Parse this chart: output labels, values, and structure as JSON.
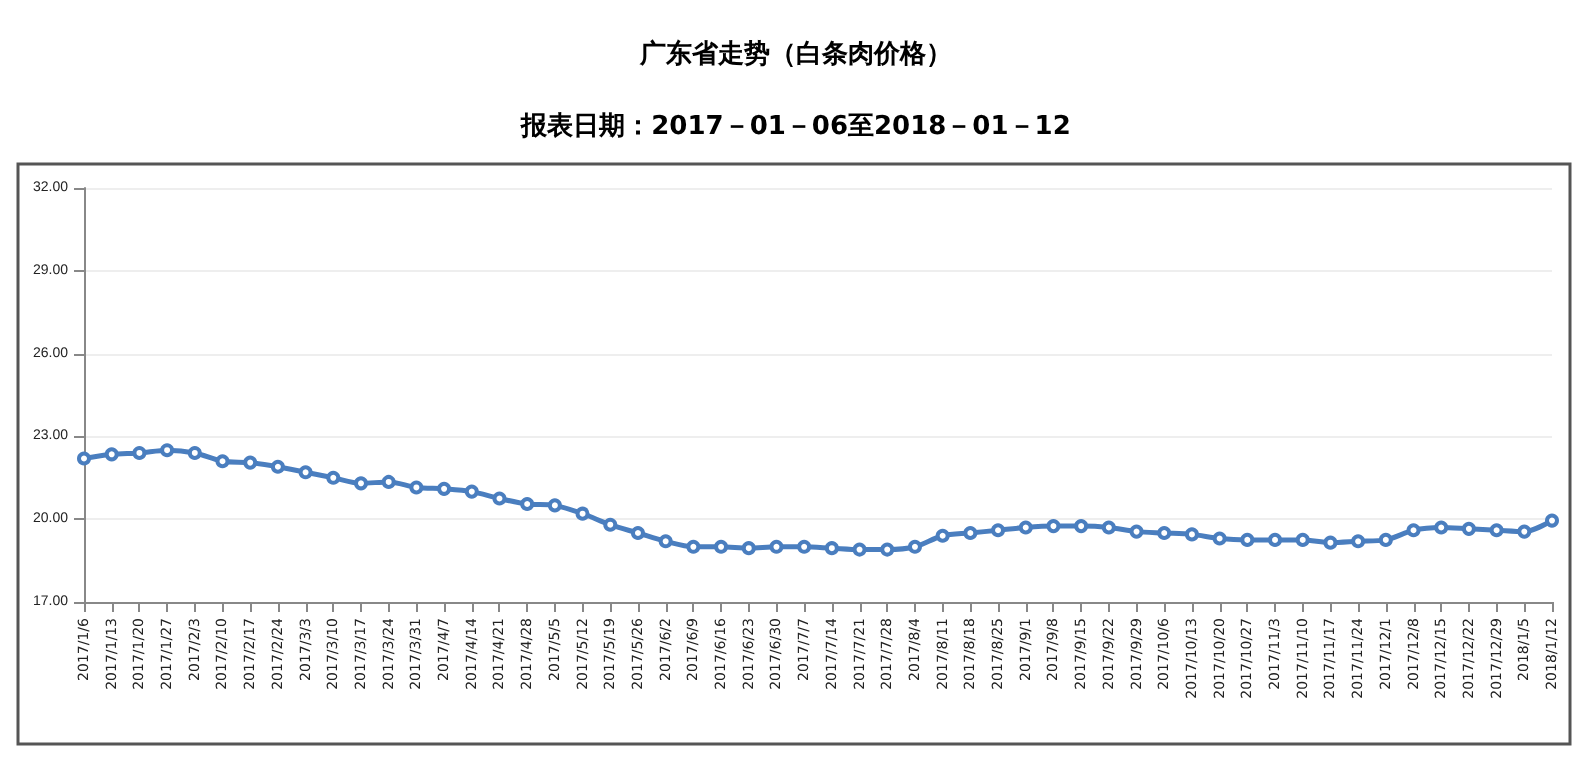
{
  "chart_data": {
    "type": "line",
    "title": "广东省走势（白条肉价格）",
    "subtitle": "报表日期：2017－01－06至2018－01－12",
    "categories": [
      "2017/1/6",
      "2017/1/13",
      "2017/1/20",
      "2017/1/27",
      "2017/2/3",
      "2017/2/10",
      "2017/2/17",
      "2017/2/24",
      "2017/3/3",
      "2017/3/10",
      "2017/3/17",
      "2017/3/24",
      "2017/3/31",
      "2017/4/7",
      "2017/4/14",
      "2017/4/21",
      "2017/4/28",
      "2017/5/5",
      "2017/5/12",
      "2017/5/19",
      "2017/5/26",
      "2017/6/2",
      "2017/6/9",
      "2017/6/16",
      "2017/6/23",
      "2017/6/30",
      "2017/7/7",
      "2017/7/14",
      "2017/7/21",
      "2017/7/28",
      "2017/8/4",
      "2017/8/11",
      "2017/8/18",
      "2017/8/25",
      "2017/9/1",
      "2017/9/8",
      "2017/9/15",
      "2017/9/22",
      "2017/9/29",
      "2017/10/6",
      "2017/10/13",
      "2017/10/20",
      "2017/10/27",
      "2017/11/3",
      "2017/11/10",
      "2017/11/17",
      "2017/11/24",
      "2017/12/1",
      "2017/12/8",
      "2017/12/15",
      "2017/12/22",
      "2017/12/29",
      "2018/1/5",
      "2018/1/12"
    ],
    "series": [
      {
        "color": "#4a7ebf",
        "values": [
          22.2,
          22.35,
          22.4,
          22.5,
          22.4,
          22.1,
          22.05,
          21.9,
          21.7,
          21.5,
          21.3,
          21.35,
          21.15,
          21.1,
          21.0,
          20.75,
          20.55,
          20.5,
          20.2,
          19.8,
          19.5,
          19.2,
          19.0,
          19.0,
          18.95,
          19.0,
          19.0,
          18.95,
          18.9,
          18.9,
          19.0,
          19.4,
          19.5,
          19.6,
          19.7,
          19.75,
          19.75,
          19.7,
          19.55,
          19.5,
          19.45,
          19.3,
          19.25,
          19.25,
          19.25,
          19.15,
          19.2,
          19.25,
          19.6,
          19.7,
          19.65,
          19.6,
          19.55,
          19.95
        ]
      }
    ],
    "ylim": [
      17,
      32
    ],
    "yticks": [
      {
        "value": 17,
        "label": "17.00"
      },
      {
        "value": 20,
        "label": "20.00"
      },
      {
        "value": 23,
        "label": "23.00"
      },
      {
        "value": 26,
        "label": "26.00"
      },
      {
        "value": 29,
        "label": "29.00"
      },
      {
        "value": 32,
        "label": "32.00"
      }
    ],
    "grid": "y",
    "marker": "circle",
    "line_style": "solid"
  }
}
